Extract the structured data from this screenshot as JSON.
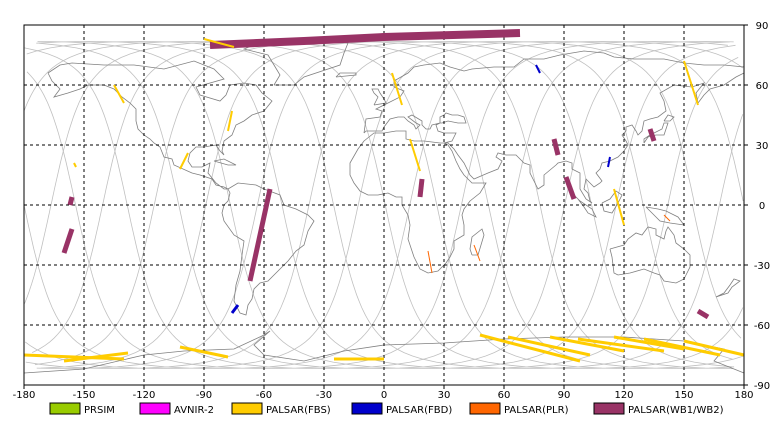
{
  "axes": {
    "x_ticks": [
      "-180",
      "-150",
      "-120",
      "-90",
      "-60",
      "-30",
      "0",
      "30",
      "60",
      "90",
      "120",
      "150",
      "180"
    ],
    "y_ticks": [
      "90",
      "60",
      "30",
      "0",
      "-30",
      "-60",
      "-90"
    ],
    "xlim": [
      -180,
      180
    ],
    "ylim": [
      -90,
      90
    ],
    "grid": true,
    "grid_step_deg": 30
  },
  "legend": {
    "placement": "bottom",
    "items": [
      {
        "label": "PRSIM",
        "color": "#99cc00"
      },
      {
        "label": "AVNIR-2",
        "color": "#ff00ff"
      },
      {
        "label": "PALSAR(FBS)",
        "color": "#ffcc00"
      },
      {
        "label": "PALSAR(FBD)",
        "color": "#0000cc"
      },
      {
        "label": "PALSAR(PLR)",
        "color": "#ff6600"
      },
      {
        "label": "PALSAR(WB1/WB2)",
        "color": "#993366"
      }
    ]
  },
  "colors": {
    "background": "#ffffff",
    "coastline": "#808080",
    "orbit_track": "#c0c0c0",
    "grid": "#000000"
  },
  "map_data": {
    "swaths": [
      {
        "mode": "PALSAR(WB1/WB2)",
        "path": [
          [
            -87,
            80
          ],
          [
            -40,
            82
          ],
          [
            0,
            84
          ],
          [
            68,
            86
          ]
        ],
        "width": 8
      },
      {
        "mode": "PALSAR(WB1/WB2)",
        "path": [
          [
            -57,
            8
          ],
          [
            -67,
            -38
          ]
        ],
        "width": 5
      },
      {
        "mode": "PALSAR(WB1/WB2)",
        "path": [
          [
            -156,
            -12
          ],
          [
            -160,
            -24
          ]
        ],
        "width": 5
      },
      {
        "mode": "PALSAR(WB1/WB2)",
        "path": [
          [
            -156,
            4
          ],
          [
            -157,
            0
          ]
        ],
        "width": 5
      },
      {
        "mode": "PALSAR(WB1/WB2)",
        "path": [
          [
            19,
            13
          ],
          [
            18,
            4
          ]
        ],
        "width": 5
      },
      {
        "mode": "PALSAR(WB1/WB2)",
        "path": [
          [
            85,
            33
          ],
          [
            87,
            25
          ]
        ],
        "width": 5
      },
      {
        "mode": "PALSAR(WB1/WB2)",
        "path": [
          [
            91,
            14
          ],
          [
            95,
            3
          ]
        ],
        "width": 5
      },
      {
        "mode": "PALSAR(WB1/WB2)",
        "path": [
          [
            133,
            38
          ],
          [
            135,
            32
          ]
        ],
        "width": 5
      },
      {
        "mode": "PALSAR(WB1/WB2)",
        "path": [
          [
            157,
            -53
          ],
          [
            162,
            -56
          ]
        ],
        "width": 5
      },
      {
        "mode": "PALSAR(FBS)",
        "path": [
          [
            -90,
            83
          ],
          [
            -75,
            79
          ]
        ],
        "width": 2
      },
      {
        "mode": "PALSAR(FBS)",
        "path": [
          [
            -135,
            60
          ],
          [
            -130,
            51
          ]
        ],
        "width": 2
      },
      {
        "mode": "PALSAR(FBS)",
        "path": [
          [
            -76,
            47
          ],
          [
            -78,
            37
          ]
        ],
        "width": 2
      },
      {
        "mode": "PALSAR(FBS)",
        "path": [
          [
            -98,
            26
          ],
          [
            -102,
            18
          ]
        ],
        "width": 2
      },
      {
        "mode": "PALSAR(FBS)",
        "path": [
          [
            -155,
            21
          ],
          [
            -154,
            19
          ]
        ],
        "width": 2
      },
      {
        "mode": "PALSAR(FBS)",
        "path": [
          [
            4,
            66
          ],
          [
            9,
            50
          ]
        ],
        "width": 2
      },
      {
        "mode": "PALSAR(FBS)",
        "path": [
          [
            13,
            33
          ],
          [
            18,
            17
          ]
        ],
        "width": 2
      },
      {
        "mode": "PALSAR(FBS)",
        "path": [
          [
            150,
            72
          ],
          [
            157,
            50
          ]
        ],
        "width": 2
      },
      {
        "mode": "PALSAR(FBS)",
        "path": [
          [
            115,
            8
          ],
          [
            120,
            -10
          ]
        ],
        "width": 2
      },
      {
        "mode": "PALSAR(FBS)",
        "path": [
          [
            -180,
            -75
          ],
          [
            -130,
            -77
          ]
        ],
        "width": 3
      },
      {
        "mode": "PALSAR(FBS)",
        "path": [
          [
            -160,
            -78
          ],
          [
            -128,
            -74
          ]
        ],
        "width": 3
      },
      {
        "mode": "PALSAR(FBS)",
        "path": [
          [
            -102,
            -71
          ],
          [
            -78,
            -76
          ]
        ],
        "width": 3
      },
      {
        "mode": "PALSAR(FBS)",
        "path": [
          [
            -25,
            -77
          ],
          [
            0,
            -77
          ]
        ],
        "width": 3
      },
      {
        "mode": "PALSAR(FBS)",
        "path": [
          [
            48,
            -65
          ],
          [
            98,
            -78
          ]
        ],
        "width": 3
      },
      {
        "mode": "PALSAR(FBS)",
        "path": [
          [
            62,
            -66
          ],
          [
            103,
            -75
          ]
        ],
        "width": 3
      },
      {
        "mode": "PALSAR(FBS)",
        "path": [
          [
            83,
            -66
          ],
          [
            120,
            -73
          ]
        ],
        "width": 3
      },
      {
        "mode": "PALSAR(FBS)",
        "path": [
          [
            97,
            -67
          ],
          [
            140,
            -73
          ]
        ],
        "width": 3
      },
      {
        "mode": "PALSAR(FBS)",
        "path": [
          [
            115,
            -66
          ],
          [
            150,
            -72
          ]
        ],
        "width": 3
      },
      {
        "mode": "PALSAR(FBS)",
        "path": [
          [
            130,
            -67
          ],
          [
            168,
            -75
          ]
        ],
        "width": 3
      },
      {
        "mode": "PALSAR(FBS)",
        "path": [
          [
            150,
            -68
          ],
          [
            180,
            -75
          ]
        ],
        "width": 3
      },
      {
        "mode": "PALSAR(FBD)",
        "path": [
          [
            76,
            70
          ],
          [
            78,
            66
          ]
        ],
        "width": 2
      },
      {
        "mode": "PALSAR(FBD)",
        "path": [
          [
            113,
            24
          ],
          [
            112,
            19
          ]
        ],
        "width": 2
      },
      {
        "mode": "PALSAR(FBD)",
        "path": [
          [
            -73,
            -50
          ],
          [
            -76,
            -54
          ]
        ],
        "width": 3
      },
      {
        "mode": "PALSAR(PLR)",
        "path": [
          [
            22,
            -23
          ],
          [
            24,
            -34
          ]
        ],
        "width": 1
      },
      {
        "mode": "PALSAR(PLR)",
        "path": [
          [
            45,
            -20
          ],
          [
            48,
            -28
          ]
        ],
        "width": 1
      },
      {
        "mode": "PALSAR(PLR)",
        "path": [
          [
            140,
            -5
          ],
          [
            143,
            -8
          ]
        ],
        "width": 1
      }
    ]
  }
}
